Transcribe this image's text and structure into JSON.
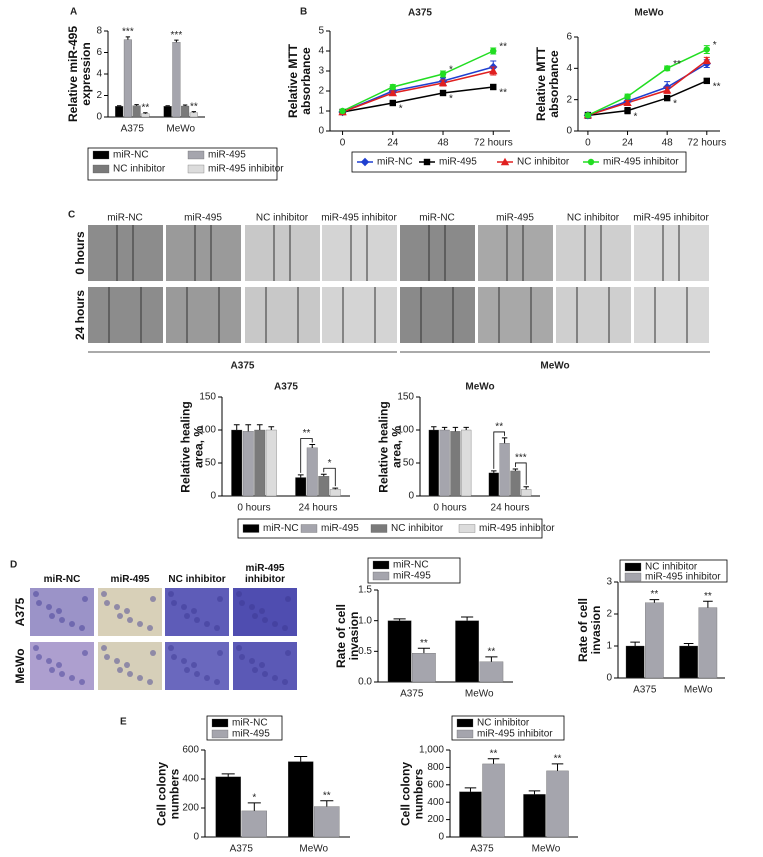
{
  "panel_labels": [
    "A",
    "B",
    "C",
    "D",
    "E"
  ],
  "wound_images": {
    "headers": [
      "miR-NC",
      "miR-495",
      "NC inhibitor",
      "miR-495 inhibitor",
      "miR-NC",
      "miR-495",
      "NC inhibitor",
      "miR-495 inhibitor"
    ],
    "rows": [
      "0 hours",
      "24 hours"
    ],
    "groups": [
      "A375",
      "MeWo"
    ]
  },
  "invasion_images": {
    "headers": [
      "miR-NC",
      "miR-495",
      "NC inhibitor",
      "miR-495 inhibitor"
    ],
    "rows": [
      "A375",
      "MeWo"
    ]
  },
  "chart_data": [
    {
      "type": "bar",
      "ylabel": "Relative miR-495 expression",
      "categories": [
        "A375",
        "MeWo"
      ],
      "ylim": [
        0,
        8
      ],
      "yticks": [
        0,
        2,
        4,
        6,
        8
      ],
      "legend": "bottom",
      "series": [
        {
          "name": "miR-NC",
          "color": "#000000",
          "values": [
            1.0,
            1.0
          ],
          "errors": [
            0.05,
            0.05
          ],
          "stars": [
            null,
            null
          ]
        },
        {
          "name": "miR-495",
          "color": "#a5a5ad",
          "values": [
            7.2,
            6.95
          ],
          "errors": [
            0.25,
            0.2
          ],
          "stars": [
            "***",
            "***"
          ]
        },
        {
          "name": "NC inhibitor",
          "color": "#7a7a7a",
          "values": [
            1.05,
            1.02
          ],
          "errors": [
            0.1,
            0.1
          ],
          "stars": [
            null,
            null
          ]
        },
        {
          "name": "miR-495 inhibitor",
          "color": "#dcdcdc",
          "values": [
            0.3,
            0.4
          ],
          "errors": [
            0.1,
            0.1
          ],
          "stars": [
            "**",
            "**"
          ]
        }
      ]
    },
    {
      "type": "line",
      "title": "A375",
      "ylabel": "Relative MTT absorbance",
      "x": [
        0,
        24,
        48,
        72
      ],
      "xlim": [
        -6,
        80
      ],
      "xticks": [
        0,
        24,
        48,
        {
          "value": 72,
          "label": "72 hours"
        }
      ],
      "ylim": [
        0,
        5
      ],
      "yticks": [
        0,
        1,
        2,
        3,
        4,
        5
      ],
      "series": [
        {
          "name": "miR-NC",
          "color": "#1f3fd0",
          "marker": "diamond",
          "values": [
            0.95,
            2.0,
            2.5,
            3.2
          ],
          "errors": [
            0.05,
            0.1,
            0.15,
            0.3
          ],
          "stars": [
            null,
            null,
            null,
            null
          ]
        },
        {
          "name": "miR-495",
          "color": "#000000",
          "marker": "square",
          "values": [
            0.95,
            1.4,
            1.9,
            2.2
          ],
          "errors": [
            0.05,
            0.08,
            0.08,
            0.12
          ],
          "stars": [
            null,
            "*",
            "*",
            "**"
          ]
        },
        {
          "name": "NC inhibitor",
          "color": "#e02020",
          "marker": "triangle",
          "values": [
            0.95,
            1.9,
            2.4,
            3.0
          ],
          "errors": [
            0.05,
            0.1,
            0.15,
            0.2
          ],
          "stars": [
            null,
            null,
            null,
            null
          ]
        },
        {
          "name": "miR-495 inhibitor",
          "color": "#22dd22",
          "marker": "circle",
          "values": [
            1.0,
            2.2,
            2.85,
            4.0
          ],
          "errors": [
            0.05,
            0.12,
            0.15,
            0.15
          ],
          "stars": [
            null,
            null,
            "*",
            "**"
          ]
        }
      ]
    },
    {
      "type": "line",
      "title": "MeWo",
      "ylabel": "Relative MTT absorbance",
      "x": [
        0,
        24,
        48,
        72
      ],
      "xlim": [
        -6,
        80
      ],
      "xticks": [
        0,
        24,
        48,
        {
          "value": 72,
          "label": "72 hours"
        }
      ],
      "ylim": [
        0,
        6
      ],
      "yticks": [
        0,
        2,
        4,
        6
      ],
      "legend": "bottom",
      "series": [
        {
          "name": "miR-NC",
          "color": "#1f3fd0",
          "marker": "diamond",
          "values": [
            1.0,
            1.9,
            2.8,
            4.3
          ],
          "errors": [
            0.2,
            0.2,
            0.35,
            0.25
          ],
          "stars": [
            null,
            null,
            null,
            null
          ]
        },
        {
          "name": "miR-495",
          "color": "#000000",
          "marker": "square",
          "values": [
            1.0,
            1.3,
            2.1,
            3.2
          ],
          "errors": [
            0.1,
            0.2,
            0.12,
            0.15
          ],
          "stars": [
            null,
            "*",
            "*",
            "**"
          ]
        },
        {
          "name": "NC inhibitor",
          "color": "#e02020",
          "marker": "triangle",
          "values": [
            1.0,
            1.8,
            2.6,
            4.5
          ],
          "errors": [
            0.1,
            0.15,
            0.2,
            0.2
          ],
          "stars": [
            null,
            null,
            null,
            null
          ]
        },
        {
          "name": "miR-495 inhibitor",
          "color": "#22dd22",
          "marker": "circle",
          "values": [
            1.0,
            2.2,
            4.0,
            5.2
          ],
          "errors": [
            0.1,
            0.15,
            0.15,
            0.25
          ],
          "stars": [
            null,
            null,
            "**",
            "*"
          ]
        }
      ]
    },
    {
      "type": "bar",
      "title": "A375",
      "ylabel": "Relative healing area, %",
      "categories": [
        "0 hours",
        "24 hours"
      ],
      "ylim": [
        0,
        150
      ],
      "yticks": [
        0,
        50,
        100,
        150
      ],
      "brackets": true,
      "series": [
        {
          "name": "miR-NC",
          "color": "#000000",
          "values": [
            100,
            28
          ],
          "errors": [
            8,
            4
          ],
          "stars": [
            null,
            null
          ]
        },
        {
          "name": "miR-495",
          "color": "#a5a5ad",
          "values": [
            98,
            73
          ],
          "errors": [
            10,
            5
          ],
          "stars": [
            null,
            "**"
          ]
        },
        {
          "name": "NC inhibitor",
          "color": "#7a7a7a",
          "values": [
            100,
            30
          ],
          "errors": [
            8,
            3
          ],
          "stars": [
            null,
            null
          ]
        },
        {
          "name": "miR-495 inhibitor",
          "color": "#dcdcdc",
          "values": [
            100,
            10
          ],
          "errors": [
            5,
            2
          ],
          "stars": [
            null,
            "*"
          ]
        }
      ]
    },
    {
      "type": "bar",
      "title": "MeWo",
      "ylabel": "Relative healing area, %",
      "categories": [
        "0 hours",
        "24 hours"
      ],
      "ylim": [
        0,
        150
      ],
      "yticks": [
        0,
        50,
        100,
        150
      ],
      "brackets": true,
      "legend": "bottom",
      "series": [
        {
          "name": "miR-NC",
          "color": "#000000",
          "values": [
            100,
            35
          ],
          "errors": [
            5,
            3
          ],
          "stars": [
            null,
            null
          ]
        },
        {
          "name": "miR-495",
          "color": "#a5a5ad",
          "values": [
            100,
            80
          ],
          "errors": [
            4,
            8
          ],
          "stars": [
            null,
            "**"
          ]
        },
        {
          "name": "NC inhibitor",
          "color": "#7a7a7a",
          "values": [
            98,
            38
          ],
          "errors": [
            6,
            3
          ],
          "stars": [
            null,
            null
          ]
        },
        {
          "name": "miR-495 inhibitor",
          "color": "#dcdcdc",
          "values": [
            100,
            10
          ],
          "errors": [
            4,
            4
          ],
          "stars": [
            null,
            "***"
          ]
        }
      ]
    },
    {
      "type": "bar",
      "ylabel": "Rate of cell invasion",
      "categories": [
        "A375",
        "MeWo"
      ],
      "ylim": [
        0,
        1.5
      ],
      "yticks": [
        {
          "value": 0,
          "label": "0.0"
        },
        0.5,
        {
          "value": 1,
          "label": "1.0"
        },
        1.5
      ],
      "legend": "top-left",
      "series": [
        {
          "name": "miR-NC",
          "color": "#000000",
          "values": [
            1.0,
            1.0
          ],
          "errors": [
            0.03,
            0.06
          ],
          "stars": [
            null,
            null
          ]
        },
        {
          "name": "miR-495",
          "color": "#a5a5ad",
          "values": [
            0.47,
            0.33
          ],
          "errors": [
            0.08,
            0.08
          ],
          "stars": [
            "**",
            "**"
          ]
        }
      ]
    },
    {
      "type": "bar",
      "ylabel": "Rate of cell invasion",
      "categories": [
        "A375",
        "MeWo"
      ],
      "ylim": [
        0,
        3
      ],
      "yticks": [
        0,
        1,
        2,
        3
      ],
      "legend": "top-left",
      "series": [
        {
          "name": "NC inhibitor",
          "color": "#000000",
          "values": [
            1.0,
            1.0
          ],
          "errors": [
            0.12,
            0.08
          ],
          "stars": [
            null,
            null
          ]
        },
        {
          "name": "miR-495 inhibitor",
          "color": "#a5a5ad",
          "values": [
            2.35,
            2.2
          ],
          "errors": [
            0.1,
            0.2
          ],
          "stars": [
            "**",
            "**"
          ]
        }
      ]
    },
    {
      "type": "bar",
      "ylabel": "Cell colony numbers",
      "categories": [
        "A375",
        "MeWo"
      ],
      "ylim": [
        0,
        600
      ],
      "yticks": [
        0,
        200,
        400,
        600
      ],
      "legend": "top-left",
      "series": [
        {
          "name": "miR-NC",
          "color": "#000000",
          "values": [
            415,
            520
          ],
          "errors": [
            20,
            35
          ],
          "stars": [
            null,
            null
          ]
        },
        {
          "name": "miR-495",
          "color": "#a5a5ad",
          "values": [
            180,
            210
          ],
          "errors": [
            55,
            40
          ],
          "stars": [
            "*",
            "**"
          ]
        }
      ]
    },
    {
      "type": "bar",
      "ylabel": "Cell colony numbers",
      "categories": [
        "A375",
        "MeWo"
      ],
      "ylim": [
        0,
        1000
      ],
      "yticks": [
        0,
        200,
        400,
        600,
        800,
        {
          "value": 1000,
          "label": "1,000"
        }
      ],
      "legend": "top-left",
      "series": [
        {
          "name": "NC inhibitor",
          "color": "#000000",
          "values": [
            520,
            490
          ],
          "errors": [
            45,
            40
          ],
          "stars": [
            null,
            null
          ]
        },
        {
          "name": "miR-495 inhibitor",
          "color": "#a5a5ad",
          "values": [
            840,
            760
          ],
          "errors": [
            60,
            80
          ],
          "stars": [
            "**",
            "**"
          ]
        }
      ]
    }
  ]
}
